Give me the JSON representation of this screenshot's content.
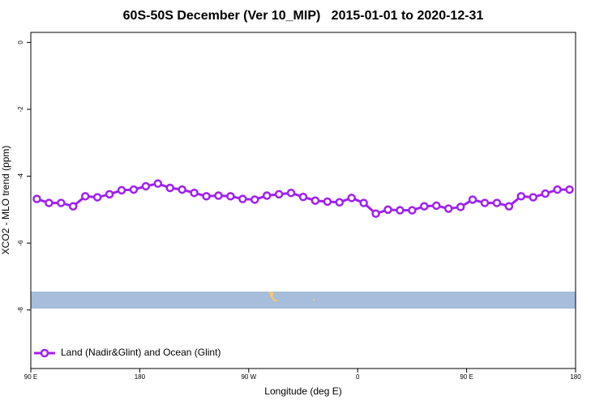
{
  "chart_data": {
    "type": "line",
    "title": "60S-50S December (Ver 10_MIP)   2015-01-01 to 2020-12-31",
    "xlabel": "Longitude (deg E)",
    "ylabel": "XCO2 - MLO trend (ppm)",
    "x": [
      95,
      105,
      115,
      125,
      135,
      145,
      155,
      165,
      175,
      185,
      195,
      205,
      215,
      225,
      235,
      245,
      255,
      265,
      275,
      285,
      295,
      305,
      315,
      325,
      335,
      345,
      355,
      365,
      375,
      385,
      395,
      405,
      415,
      425,
      435,
      445,
      455,
      465,
      475,
      485,
      495,
      505,
      515,
      525,
      535
    ],
    "series": [
      {
        "name": "Land (Nadir&Glint) and Ocean (Glint)",
        "color": "#a020f0",
        "values": [
          -4.68,
          -4.8,
          -4.8,
          -4.9,
          -4.6,
          -4.63,
          -4.54,
          -4.42,
          -4.4,
          -4.3,
          -4.22,
          -4.35,
          -4.4,
          -4.5,
          -4.6,
          -4.58,
          -4.6,
          -4.68,
          -4.7,
          -4.58,
          -4.54,
          -4.5,
          -4.62,
          -4.73,
          -4.76,
          -4.78,
          -4.65,
          -4.8,
          -5.12,
          -5.0,
          -5.02,
          -5.02,
          -4.9,
          -4.88,
          -4.97,
          -4.92,
          -4.7,
          -4.8,
          -4.8,
          -4.9,
          -4.6,
          -4.63,
          -4.52,
          -4.4,
          -4.4
        ]
      }
    ],
    "xlim": [
      90,
      540
    ],
    "xticks": [
      {
        "value": 90,
        "label": "90 E"
      },
      180,
      {
        "value": 270,
        "label": "90 W"
      },
      {
        "value": 360,
        "label": "0"
      },
      {
        "value": 450,
        "label": "90 E"
      },
      {
        "value": 540,
        "label": "180"
      }
    ],
    "ylim": [
      -9.75,
      0.3
    ],
    "yticks": [
      0,
      -2,
      -4,
      -6,
      -8
    ],
    "legend": "bottom-left"
  }
}
